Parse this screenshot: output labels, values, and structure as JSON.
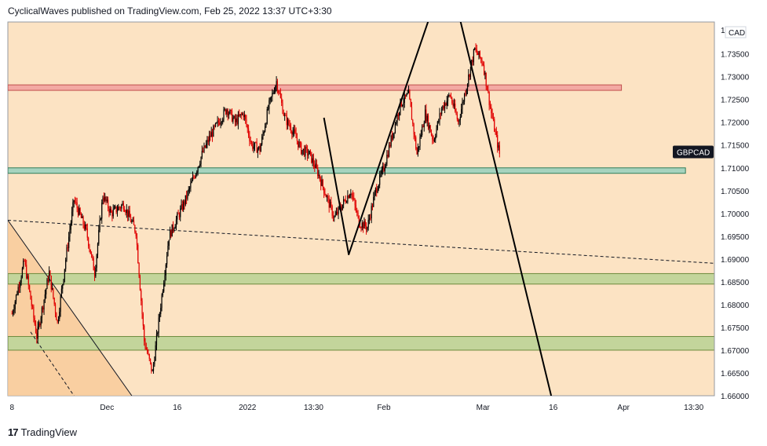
{
  "header": {
    "publisher": "CyclicalWaves published on TradingView.com, Feb 25, 2022 13:37 UTC+3:30"
  },
  "footer": {
    "brand": "TradingView"
  },
  "chart_data": {
    "type": "candlestick",
    "symbol_label": "GBPCAD",
    "currency_label": "CAD",
    "y_top_partial_label": "1",
    "x_tick_labels": [
      "8",
      "Dec",
      "16",
      "2022",
      "13:30",
      "Feb",
      "Mar",
      "16",
      "Apr",
      "13:30"
    ],
    "x_ticks_day": [
      0,
      23,
      40,
      57,
      73,
      90,
      114,
      131,
      148,
      165
    ],
    "y_tick_labels": [
      "1.73500",
      "1.73000",
      "1.72500",
      "1.72000",
      "1.71500",
      "1.71000",
      "1.70500",
      "1.70000",
      "1.69500",
      "1.69000",
      "1.68500",
      "1.68000",
      "1.67500",
      "1.67000",
      "1.66500",
      "1.66000"
    ],
    "ylim": [
      1.66,
      1.742
    ],
    "xlim_day": [
      -1,
      170
    ],
    "current_price": 1.7135,
    "colors": {
      "background": "#fce3c3",
      "up": "#000000",
      "down": "#e00000",
      "resistance_zone": "#f3a9a3",
      "support_zone_teal": "#a6d3be",
      "support_zone_green": "#c3d59b",
      "lower_left_fill": "#f8c896"
    },
    "zones": [
      {
        "name": "resistance",
        "y1": 1.727,
        "y2": 1.7282,
        "x1": -1,
        "x2": 147.5,
        "color": "#f3a9a3"
      },
      {
        "name": "support-teal",
        "y1": 1.7088,
        "y2": 1.71,
        "x1": -1,
        "x2": 163,
        "color": "#a6d3be"
      },
      {
        "name": "support-green-upper",
        "y1": 1.6845,
        "y2": 1.6868,
        "x1": -1,
        "x2": 170,
        "color": "#c3d59b"
      },
      {
        "name": "support-green-lower",
        "y1": 1.67,
        "y2": 1.673,
        "x1": -1,
        "x2": 170,
        "color": "#c3d59b"
      }
    ],
    "projection_path": [
      [
        75.5,
        1.721
      ],
      [
        81.5,
        1.691
      ],
      [
        101.5,
        1.7442
      ],
      [
        108,
        1.7442
      ],
      [
        130.5,
        1.66
      ]
    ],
    "dashed_trendline": [
      [
        -1,
        1.6985
      ],
      [
        171,
        1.689
      ]
    ],
    "wedge_solid": [
      [
        -1,
        1.6985
      ],
      [
        29,
        1.66
      ]
    ],
    "wedge_dashed": [
      [
        4.5,
        1.674
      ],
      [
        15,
        1.66
      ]
    ],
    "price_path": [
      [
        0,
        1.678
      ],
      [
        3,
        1.6895
      ],
      [
        6,
        1.673
      ],
      [
        9,
        1.687
      ],
      [
        11,
        1.676
      ],
      [
        13,
        1.69
      ],
      [
        15,
        1.703
      ],
      [
        18,
        1.696
      ],
      [
        20,
        1.687
      ],
      [
        22,
        1.704
      ],
      [
        24,
        1.7
      ],
      [
        27,
        1.702
      ],
      [
        30,
        1.696
      ],
      [
        32,
        1.672
      ],
      [
        34,
        1.665
      ],
      [
        36,
        1.68
      ],
      [
        38,
        1.695
      ],
      [
        40,
        1.699
      ],
      [
        42,
        1.703
      ],
      [
        44,
        1.708
      ],
      [
        46,
        1.713
      ],
      [
        48,
        1.717
      ],
      [
        50,
        1.72
      ],
      [
        52,
        1.723
      ],
      [
        54,
        1.72
      ],
      [
        56,
        1.722
      ],
      [
        58,
        1.715
      ],
      [
        60,
        1.714
      ],
      [
        62,
        1.723
      ],
      [
        64,
        1.729
      ],
      [
        66,
        1.721
      ],
      [
        68,
        1.718
      ],
      [
        70,
        1.714
      ],
      [
        72,
        1.713
      ],
      [
        74,
        1.709
      ],
      [
        76,
        1.704
      ],
      [
        78,
        1.699
      ],
      [
        80,
        1.702
      ],
      [
        82,
        1.705
      ],
      [
        84,
        1.698
      ],
      [
        86,
        1.697
      ],
      [
        88,
        1.705
      ],
      [
        90,
        1.71
      ],
      [
        92,
        1.717
      ],
      [
        94,
        1.724
      ],
      [
        96,
        1.726
      ],
      [
        98,
        1.713
      ],
      [
        100,
        1.722
      ],
      [
        102,
        1.716
      ],
      [
        104,
        1.723
      ],
      [
        106,
        1.726
      ],
      [
        108,
        1.72
      ],
      [
        110,
        1.728
      ],
      [
        112,
        1.736
      ],
      [
        114,
        1.733
      ],
      [
        116,
        1.722
      ],
      [
        118,
        1.713
      ]
    ]
  }
}
